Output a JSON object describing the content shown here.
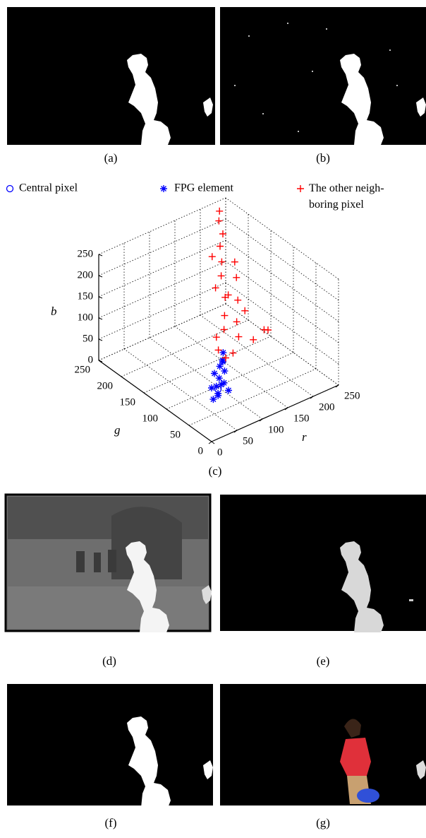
{
  "captions": {
    "a": "(a)",
    "b": "(b)",
    "c": "(c)",
    "d": "(d)",
    "e": "(e)",
    "f": "(f)",
    "g": "(g)"
  },
  "chart_data": {
    "type": "scatter3d",
    "series": [
      {
        "name": "Central pixel",
        "color": "#0000ff",
        "marker": "circle",
        "r": [
          82
        ],
        "g": [
          78
        ],
        "b": [
          20
        ]
      },
      {
        "name": "FPG element",
        "color": "#0000ff",
        "marker": "asterisk",
        "r": [
          82,
          70,
          75,
          85,
          90,
          95,
          100,
          110,
          105,
          115,
          120,
          90,
          80,
          100,
          125
        ],
        "g": [
          78,
          75,
          70,
          85,
          80,
          90,
          85,
          95,
          100,
          105,
          110,
          95,
          90,
          75,
          115
        ],
        "b": [
          10,
          5,
          15,
          20,
          25,
          30,
          20,
          35,
          45,
          50,
          40,
          40,
          15,
          10,
          55
        ]
      },
      {
        "name": "The other neigh-\nboring pixel",
        "color": "#ff0000",
        "marker": "plus",
        "r": [
          120,
          130,
          140,
          150,
          160,
          170,
          180,
          200,
          220,
          210,
          190,
          175,
          160,
          180,
          200,
          210,
          190,
          150,
          170,
          140,
          125,
          200,
          165,
          185,
          210
        ],
        "g": [
          120,
          115,
          130,
          140,
          150,
          170,
          180,
          200,
          230,
          220,
          195,
          160,
          120,
          110,
          100,
          120,
          140,
          160,
          190,
          110,
          130,
          170,
          130,
          150,
          185
        ],
        "b": [
          60,
          40,
          90,
          110,
          140,
          170,
          190,
          230,
          250,
          240,
          210,
          130,
          70,
          60,
          80,
          60,
          100,
          160,
          200,
          50,
          80,
          150,
          95,
          120,
          170
        ]
      }
    ],
    "r_label": "r",
    "g_label": "g",
    "b_label": "b",
    "rlim": [
      0,
      250
    ],
    "glim": [
      0,
      250
    ],
    "blim": [
      0,
      250
    ],
    "rticks": [
      0,
      50,
      100,
      150,
      200,
      250
    ],
    "gticks": [
      0,
      50,
      100,
      150,
      200,
      250
    ],
    "bticks": [
      0,
      50,
      100,
      150,
      200,
      250
    ],
    "grid": true
  }
}
